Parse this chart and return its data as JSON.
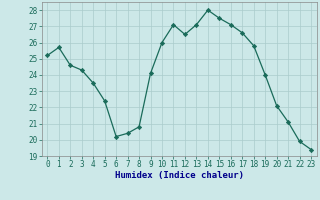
{
  "x": [
    0,
    1,
    2,
    3,
    4,
    5,
    6,
    7,
    8,
    9,
    10,
    11,
    12,
    13,
    14,
    15,
    16,
    17,
    18,
    19,
    20,
    21,
    22,
    23
  ],
  "y": [
    25.2,
    25.7,
    24.6,
    24.3,
    23.5,
    22.4,
    20.2,
    20.4,
    20.8,
    24.1,
    26.0,
    27.1,
    26.5,
    27.1,
    28.0,
    27.5,
    27.1,
    26.6,
    25.8,
    24.0,
    22.1,
    21.1,
    19.9,
    19.4
  ],
  "line_color": "#1a6b5a",
  "marker": "D",
  "marker_size": 2.2,
  "bg_color": "#cce8e8",
  "grid_color": "#aacccc",
  "xlabel": "Humidex (Indice chaleur)",
  "ylim": [
    19,
    28.5
  ],
  "xlim": [
    -0.5,
    23.5
  ],
  "yticks": [
    19,
    20,
    21,
    22,
    23,
    24,
    25,
    26,
    27,
    28
  ],
  "xticks": [
    0,
    1,
    2,
    3,
    4,
    5,
    6,
    7,
    8,
    9,
    10,
    11,
    12,
    13,
    14,
    15,
    16,
    17,
    18,
    19,
    20,
    21,
    22,
    23
  ],
  "xlabel_color": "#00008b",
  "tick_color": "#1a6b5a"
}
